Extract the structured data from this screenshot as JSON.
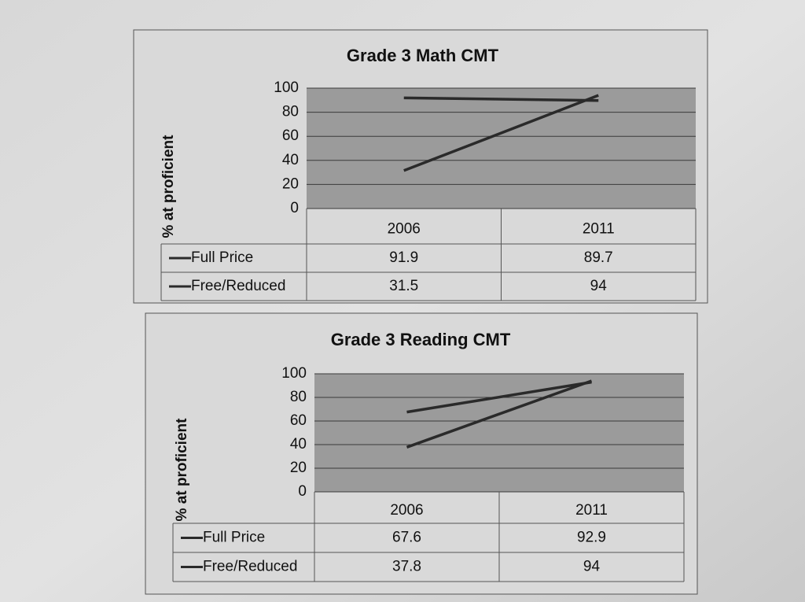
{
  "chart_data": [
    {
      "type": "line",
      "title": "Grade  3 Math CMT",
      "y_label": "% at proficient",
      "categories": [
        "2006",
        "2011"
      ],
      "series": [
        {
          "name": "Full Price",
          "color": "#2a2a2a",
          "values": [
            91.9,
            89.7
          ]
        },
        {
          "name": "Free/Reduced",
          "color": "#2a2a2a",
          "values": [
            31.5,
            94
          ]
        }
      ],
      "ylim": [
        0,
        100
      ],
      "yticks": [
        0,
        20,
        40,
        60,
        80,
        100
      ],
      "grid": true,
      "data_table": true
    },
    {
      "type": "line",
      "title": "Grade 3 Reading CMT",
      "y_label": "% at proficient",
      "categories": [
        "2006",
        "2011"
      ],
      "series": [
        {
          "name": "Full Price",
          "color": "#2a2a2a",
          "values": [
            67.6,
            92.9
          ]
        },
        {
          "name": "Free/Reduced",
          "color": "#2a2a2a",
          "values": [
            37.8,
            94
          ]
        }
      ],
      "ylim": [
        0,
        100
      ],
      "yticks": [
        0,
        20,
        40,
        60,
        80,
        100
      ],
      "grid": true,
      "data_table": true
    }
  ]
}
